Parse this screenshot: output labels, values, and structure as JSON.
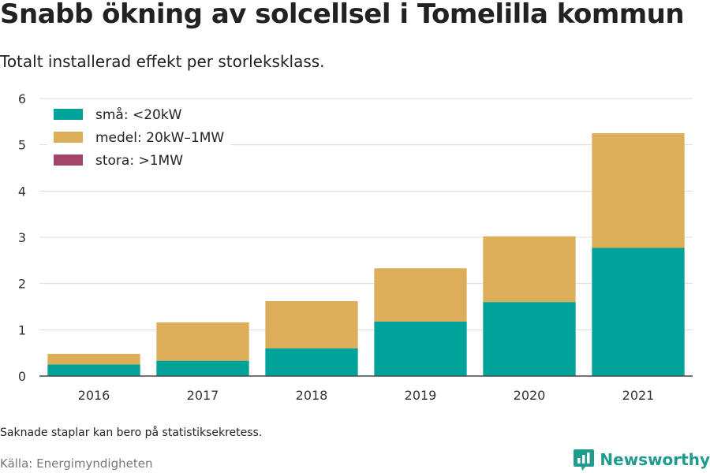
{
  "title": "Snabb ökning av solcellsel i Tomelilla kommun",
  "subtitle": "Totalt installerad effekt per storleksklass.",
  "footnote": "Saknade staplar kan bero på statistiksekretess.",
  "source": "Källa: Energimyndigheten",
  "brand": {
    "name": "Newsworthy",
    "icon": "newsworthy-logo-icon",
    "color": "#1f9c8e"
  },
  "chart_data": {
    "type": "bar",
    "stacked": true,
    "categories": [
      "2016",
      "2017",
      "2018",
      "2019",
      "2020",
      "2021"
    ],
    "series": [
      {
        "name": "små: <20kW",
        "color": "#00a29a",
        "values": [
          0.25,
          0.33,
          0.6,
          1.18,
          1.6,
          2.77
        ]
      },
      {
        "name": "medel: 20kW–1MW",
        "color": "#dcae5a",
        "values": [
          0.23,
          0.83,
          1.02,
          1.15,
          1.42,
          2.48
        ]
      },
      {
        "name": "stora: >1MW",
        "color": "#a3446b",
        "values": [
          0,
          0,
          0,
          0,
          0,
          0
        ]
      }
    ],
    "ylim": [
      0,
      6
    ],
    "yticks": [
      0,
      1,
      2,
      3,
      4,
      5,
      6
    ],
    "grid": true,
    "legend_position": "top-left"
  }
}
